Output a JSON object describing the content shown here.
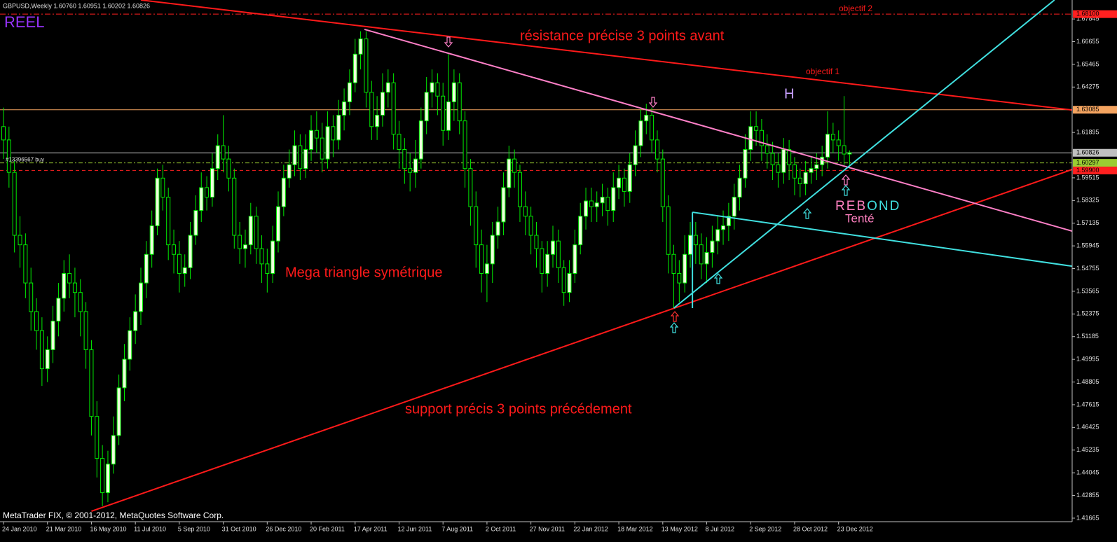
{
  "chart_data": {
    "type": "candlestick",
    "title": "GBPUSD,Weekly  1.60760 1.60951 1.60202 1.60826",
    "corner_label": "REEL",
    "footer": "MetaTrader FIX, © 2001-2012, MetaQuotes Software Corp.",
    "annotations": {
      "resistance": "résistance précise 3 points avant",
      "objectif_2": "objectif 2",
      "objectif_1": "objectif 1",
      "h": "H",
      "triangle": "Mega triangle symétrique",
      "support": "support précis 3 points précédement",
      "rebond": "REBOND",
      "tente": "Tenté"
    },
    "categories": [
      "24 Jan 2010",
      null,
      null,
      null,
      null,
      null,
      null,
      null,
      "21 Mar 2010",
      null,
      null,
      null,
      null,
      null,
      null,
      null,
      "16 May 2010",
      null,
      null,
      null,
      null,
      null,
      null,
      null,
      "11 Jul 2010",
      null,
      null,
      null,
      null,
      null,
      null,
      null,
      "5 Sep 2010",
      null,
      null,
      null,
      null,
      null,
      null,
      null,
      "31 Oct 2010",
      null,
      null,
      null,
      null,
      null,
      null,
      null,
      "26 Dec 2010",
      null,
      null,
      null,
      null,
      null,
      null,
      null,
      "20 Feb 2011",
      null,
      null,
      null,
      null,
      null,
      null,
      null,
      "17 Apr 2011",
      null,
      null,
      null,
      null,
      null,
      null,
      null,
      "12 Jun 2011",
      null,
      null,
      null,
      null,
      null,
      null,
      null,
      "7 Aug 2011",
      null,
      null,
      null,
      null,
      null,
      null,
      null,
      "2 Oct 2011",
      null,
      null,
      null,
      null,
      null,
      null,
      null,
      "27 Nov 2011",
      null,
      null,
      null,
      null,
      null,
      null,
      null,
      "22 Jan 2012",
      null,
      null,
      null,
      null,
      null,
      null,
      null,
      "18 Mar 2012",
      null,
      null,
      null,
      null,
      null,
      null,
      null,
      "13 May 2012",
      null,
      null,
      null,
      null,
      null,
      null,
      null,
      "8 Jul 2012",
      null,
      null,
      null,
      null,
      null,
      null,
      null,
      "2 Sep 2012",
      null,
      null,
      null,
      null,
      null,
      null,
      null,
      "28 Oct 2012",
      null,
      null,
      null,
      null,
      null,
      null,
      null,
      "23 Dec 2012",
      null,
      null
    ],
    "open": [
      1.622,
      1.615,
      1.598,
      1.565,
      1.56,
      1.54,
      1.525,
      1.515,
      1.495,
      1.505,
      1.52,
      1.532,
      1.545,
      1.54,
      1.535,
      1.525,
      1.505,
      1.47,
      1.448,
      1.43,
      1.445,
      1.46,
      1.485,
      1.5,
      1.515,
      1.525,
      1.54,
      1.555,
      1.57,
      1.595,
      1.585,
      1.56,
      1.555,
      1.545,
      1.548,
      1.565,
      1.578,
      1.59,
      1.585,
      1.6,
      1.612,
      1.605,
      1.595,
      1.565,
      1.558,
      1.56,
      1.575,
      1.558,
      1.55,
      1.545,
      1.562,
      1.58,
      1.595,
      1.602,
      1.612,
      1.6,
      1.61,
      1.62,
      1.616,
      1.605,
      1.622,
      1.615,
      1.628,
      1.635,
      1.645,
      1.66,
      1.668,
      1.64,
      1.622,
      1.628,
      1.64,
      1.645,
      1.618,
      1.61,
      1.6,
      1.598,
      1.605,
      1.625,
      1.64,
      1.645,
      1.638,
      1.62,
      1.635,
      1.645,
      1.625,
      1.6,
      1.58,
      1.56,
      1.545,
      1.55,
      1.565,
      1.572,
      1.59,
      1.605,
      1.598,
      1.58,
      1.575,
      1.565,
      1.558,
      1.545,
      1.555,
      1.562,
      1.548,
      1.535,
      1.545,
      1.56,
      1.575,
      1.583,
      1.58,
      1.582,
      1.585,
      1.578,
      1.59,
      1.595,
      1.588,
      1.602,
      1.612,
      1.625,
      1.628,
      1.615,
      1.605,
      1.58,
      1.555,
      1.545,
      1.54,
      1.555,
      1.565,
      1.56,
      1.55,
      1.556,
      1.562,
      1.568,
      1.57,
      1.575,
      1.585,
      1.595,
      1.61,
      1.622,
      1.62,
      1.612,
      1.608,
      1.602,
      1.598,
      1.61,
      1.602,
      1.595,
      1.592,
      1.598,
      1.6,
      1.602,
      1.606,
      1.618,
      1.615,
      1.612,
      1.6076
    ],
    "high": [
      1.632,
      1.622,
      1.604,
      1.575,
      1.566,
      1.548,
      1.532,
      1.522,
      1.512,
      1.528,
      1.54,
      1.552,
      1.555,
      1.548,
      1.542,
      1.53,
      1.51,
      1.478,
      1.455,
      1.452,
      1.47,
      1.492,
      1.508,
      1.522,
      1.534,
      1.548,
      1.562,
      1.578,
      1.6,
      1.602,
      1.59,
      1.568,
      1.562,
      1.555,
      1.572,
      1.586,
      1.598,
      1.596,
      1.608,
      1.618,
      1.628,
      1.612,
      1.6,
      1.572,
      1.568,
      1.582,
      1.58,
      1.565,
      1.558,
      1.57,
      1.588,
      1.602,
      1.61,
      1.62,
      1.618,
      1.618,
      1.628,
      1.63,
      1.624,
      1.63,
      1.628,
      1.636,
      1.642,
      1.652,
      1.668,
      1.672,
      1.672,
      1.646,
      1.638,
      1.65,
      1.652,
      1.65,
      1.625,
      1.616,
      1.608,
      1.615,
      1.632,
      1.648,
      1.652,
      1.65,
      1.645,
      1.66,
      1.652,
      1.65,
      1.63,
      1.605,
      1.588,
      1.568,
      1.56,
      1.572,
      1.58,
      1.598,
      1.612,
      1.61,
      1.602,
      1.588,
      1.58,
      1.572,
      1.562,
      1.562,
      1.57,
      1.568,
      1.552,
      1.552,
      1.568,
      1.582,
      1.59,
      1.59,
      1.588,
      1.592,
      1.59,
      1.598,
      1.602,
      1.6,
      1.608,
      1.62,
      1.632,
      1.634,
      1.632,
      1.62,
      1.61,
      1.586,
      1.56,
      1.552,
      1.565,
      1.572,
      1.572,
      1.566,
      1.564,
      1.57,
      1.575,
      1.578,
      1.582,
      1.592,
      1.602,
      1.618,
      1.63,
      1.63,
      1.626,
      1.618,
      1.614,
      1.608,
      1.616,
      1.615,
      1.606,
      1.6,
      1.604,
      1.606,
      1.608,
      1.612,
      1.63,
      1.624,
      1.62,
      1.638,
      1.6095
    ],
    "low": [
      1.605,
      1.59,
      1.556,
      1.548,
      1.532,
      1.515,
      1.505,
      1.486,
      1.488,
      1.498,
      1.512,
      1.525,
      1.532,
      1.522,
      1.512,
      1.495,
      1.46,
      1.438,
      1.423,
      1.425,
      1.44,
      1.455,
      1.478,
      1.494,
      1.508,
      1.518,
      1.532,
      1.548,
      1.565,
      1.578,
      1.552,
      1.545,
      1.535,
      1.538,
      1.542,
      1.56,
      1.572,
      1.578,
      1.58,
      1.594,
      1.598,
      1.588,
      1.558,
      1.55,
      1.548,
      1.555,
      1.55,
      1.54,
      1.535,
      1.54,
      1.556,
      1.575,
      1.59,
      1.596,
      1.594,
      1.595,
      1.604,
      1.608,
      1.598,
      1.6,
      1.606,
      1.61,
      1.62,
      1.628,
      1.64,
      1.652,
      1.632,
      1.615,
      1.615,
      1.622,
      1.632,
      1.61,
      1.6,
      1.592,
      1.588,
      1.59,
      1.6,
      1.618,
      1.632,
      1.628,
      1.612,
      1.615,
      1.625,
      1.618,
      1.59,
      1.57,
      1.548,
      1.535,
      1.53,
      1.54,
      1.558,
      1.565,
      1.585,
      1.59,
      1.572,
      1.565,
      1.555,
      1.548,
      1.535,
      1.538,
      1.548,
      1.54,
      1.528,
      1.53,
      1.54,
      1.555,
      1.568,
      1.572,
      1.572,
      1.575,
      1.57,
      1.572,
      1.584,
      1.58,
      1.582,
      1.596,
      1.606,
      1.618,
      1.608,
      1.598,
      1.572,
      1.545,
      1.527,
      1.53,
      1.535,
      1.548,
      1.55,
      1.542,
      1.54,
      1.548,
      1.555,
      1.56,
      1.562,
      1.568,
      1.578,
      1.59,
      1.604,
      1.612,
      1.604,
      1.6,
      1.594,
      1.59,
      1.592,
      1.594,
      1.586,
      1.585,
      1.586,
      1.592,
      1.594,
      1.596,
      1.6,
      1.608,
      1.604,
      1.602,
      1.602
    ],
    "close": [
      1.615,
      1.598,
      1.565,
      1.56,
      1.54,
      1.525,
      1.515,
      1.495,
      1.505,
      1.52,
      1.532,
      1.545,
      1.54,
      1.535,
      1.525,
      1.505,
      1.47,
      1.448,
      1.43,
      1.445,
      1.46,
      1.485,
      1.5,
      1.515,
      1.525,
      1.54,
      1.555,
      1.57,
      1.595,
      1.585,
      1.56,
      1.555,
      1.545,
      1.548,
      1.565,
      1.578,
      1.59,
      1.585,
      1.6,
      1.612,
      1.605,
      1.595,
      1.565,
      1.558,
      1.56,
      1.575,
      1.558,
      1.55,
      1.545,
      1.562,
      1.58,
      1.595,
      1.602,
      1.612,
      1.6,
      1.61,
      1.62,
      1.616,
      1.605,
      1.622,
      1.615,
      1.628,
      1.635,
      1.645,
      1.66,
      1.668,
      1.64,
      1.622,
      1.628,
      1.64,
      1.645,
      1.618,
      1.61,
      1.6,
      1.598,
      1.605,
      1.625,
      1.64,
      1.645,
      1.638,
      1.62,
      1.635,
      1.645,
      1.625,
      1.6,
      1.58,
      1.56,
      1.545,
      1.55,
      1.565,
      1.572,
      1.59,
      1.605,
      1.598,
      1.58,
      1.575,
      1.565,
      1.558,
      1.545,
      1.555,
      1.562,
      1.548,
      1.535,
      1.545,
      1.56,
      1.575,
      1.583,
      1.58,
      1.582,
      1.585,
      1.578,
      1.59,
      1.595,
      1.588,
      1.602,
      1.612,
      1.625,
      1.628,
      1.615,
      1.605,
      1.58,
      1.555,
      1.545,
      1.54,
      1.555,
      1.565,
      1.56,
      1.55,
      1.556,
      1.562,
      1.568,
      1.57,
      1.575,
      1.585,
      1.595,
      1.61,
      1.622,
      1.62,
      1.612,
      1.608,
      1.602,
      1.598,
      1.61,
      1.602,
      1.595,
      1.592,
      1.598,
      1.6,
      1.602,
      1.606,
      1.618,
      1.615,
      1.612,
      1.6076,
      1.6083
    ],
    "up_color": "#eeffdd",
    "down_color": "#000000",
    "wick_color": "#00ee00",
    "ylim": [
      1.4148,
      1.6884
    ],
    "yticks": [
      1.67845,
      1.66655,
      1.65465,
      1.64275,
      1.61895,
      1.59515,
      1.58325,
      1.57135,
      1.55945,
      1.54755,
      1.53565,
      1.52375,
      1.51185,
      1.49995,
      1.48805,
      1.47615,
      1.46425,
      1.45235,
      1.44045,
      1.42855,
      1.41665
    ],
    "levels": [
      {
        "value": 1.681,
        "label": "1.68100",
        "color": "#ff2020",
        "dash": "8,3,2,3"
      },
      {
        "value": 1.63085,
        "color": "#f4a460",
        "dash": "none"
      },
      {
        "value": 1.60826,
        "color": "#c0c0c0",
        "dash": "none"
      },
      {
        "value": 1.60297,
        "color": "#9acd32",
        "dash": "6,3,2,3",
        "text": "#13396567 buy"
      },
      {
        "value": 1.599,
        "label": "1.59900",
        "color": "#ff2020",
        "dash": "5,4"
      }
    ],
    "trendlines": [
      {
        "color": "#ff1a1a",
        "points": [
          [
            25,
            1.6884
          ],
          [
            194.5,
            1.6307
          ]
        ]
      },
      {
        "color": "#ff1a1a",
        "points": [
          [
            16,
            1.4203
          ],
          [
            194.5,
            1.5995
          ]
        ]
      },
      {
        "color": "#ff80c8",
        "points": [
          [
            65.7,
            1.673
          ],
          [
            194.5,
            1.5672
          ]
        ]
      },
      {
        "color": "#40e0e0",
        "points": [
          [
            122,
            1.5268
          ],
          [
            191.3,
            1.6884
          ]
        ]
      },
      {
        "color": "#40e0e0",
        "points": [
          [
            125.4,
            1.5771
          ],
          [
            194.5,
            1.5488
          ]
        ]
      },
      {
        "color": "#40e0e0",
        "points": [
          [
            125.4,
            1.5771
          ],
          [
            125.4,
            1.5268
          ]
        ]
      }
    ]
  }
}
